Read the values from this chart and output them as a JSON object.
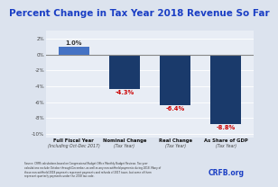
{
  "title": "Percent Change in Tax Year 2018 Revenue So Far",
  "categories": [
    "Full Fiscal Year",
    "Nominal Change",
    "Real Change",
    "As Share of GDP"
  ],
  "subtitles": [
    "(Including Oct-Dec 2017)",
    "(Tax Year)",
    "(Tax Year)",
    "(Tax Year)"
  ],
  "values": [
    1.0,
    -4.3,
    -6.4,
    -8.8
  ],
  "bar_labels": [
    "1.0%",
    "-4.3%",
    "-6.4%",
    "-8.8%"
  ],
  "bar_color_pos": "#4472c4",
  "bar_color_neg": "#1a3a6b",
  "label_color_pos": "#333333",
  "label_color_neg": "#cc0000",
  "ylim": [
    -10.5,
    3.0
  ],
  "yticks": [
    2,
    0,
    -2,
    -4,
    -6,
    -8,
    -10
  ],
  "ytick_labels": [
    "2%",
    "0%",
    "-2%",
    "-4%",
    "-6%",
    "-8%",
    "-10%"
  ],
  "background_color": "#dce3ee",
  "plot_bg_color": "#e8edf5",
  "title_color": "#1a3ec4",
  "title_fontsize": 7.5,
  "source_text": "Source: CRFB calculations based on Congressional Budget Office Monthly Budget Reviews. Tax year\ncalculations exclude October through December, as well as any non-withheld payments during 2018. Many of\nthose non-withheld 2018 payments represent payments and refunds of 2017 taxes, but some of them\nrepresent quarterly payments under the 2018 tax code.",
  "logo_text": "CRFB.org"
}
